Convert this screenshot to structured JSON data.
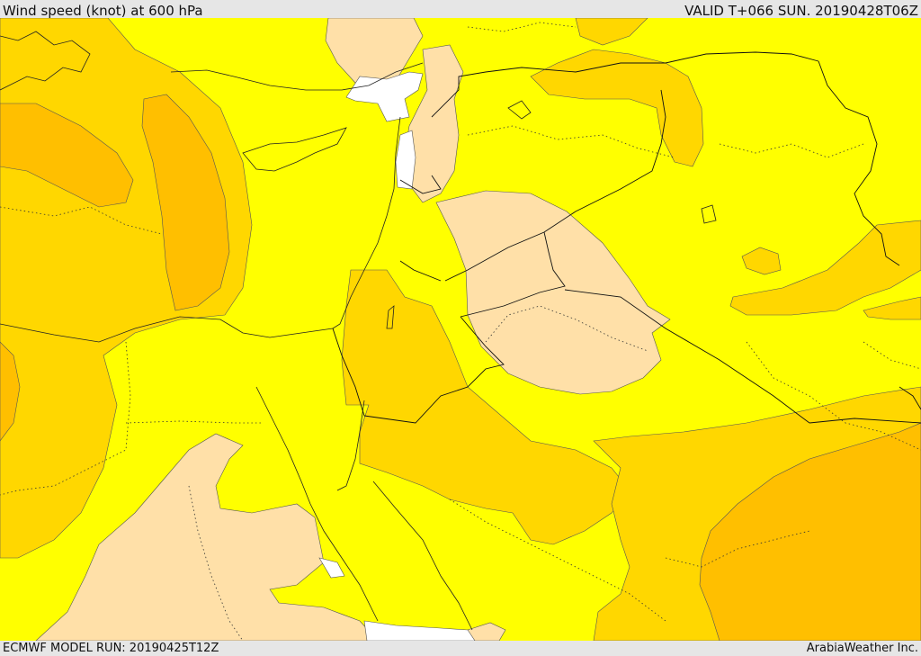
{
  "header": {
    "title": "Wind speed (knot) at 600 hPa",
    "valid": "VALID T+066 SUN. 20190428T06Z"
  },
  "footer": {
    "model_run": "ECMWF MODEL RUN: 20190425T12Z",
    "provider": "ArabiaWeather Inc."
  },
  "map": {
    "field": "wind speed at 600 hPa",
    "colors": {
      "background_yellow": "#ffff00",
      "moderate_gold": "#ffd700",
      "strong_orange": "#ffbf00",
      "calm_beige": "#ffe0a8",
      "no_data_white": "#ffffff"
    }
  }
}
